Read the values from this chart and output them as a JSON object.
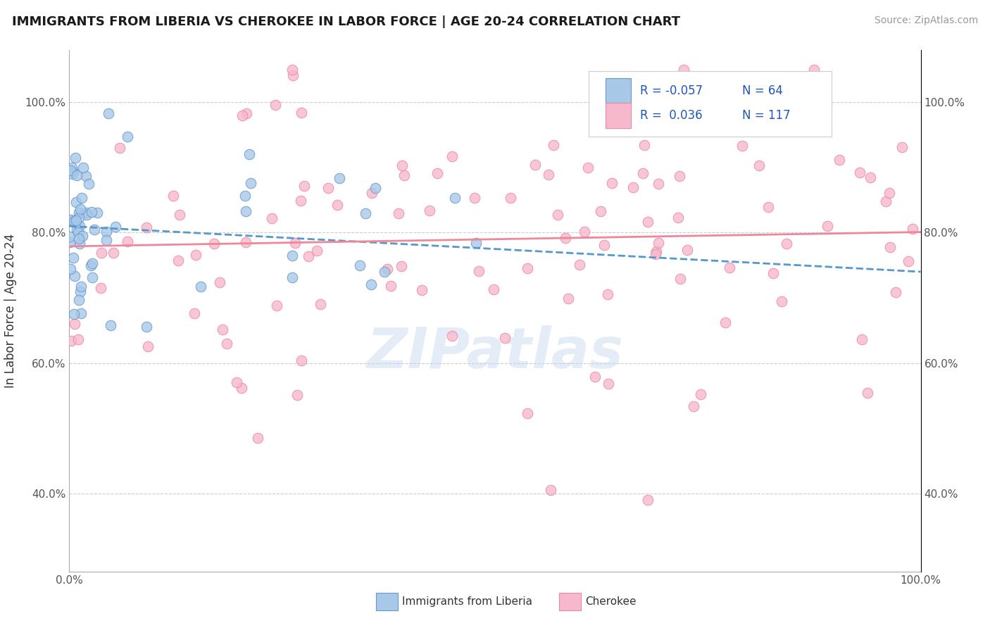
{
  "title": "IMMIGRANTS FROM LIBERIA VS CHEROKEE IN LABOR FORCE | AGE 20-24 CORRELATION CHART",
  "source_text": "Source: ZipAtlas.com",
  "ylabel": "In Labor Force | Age 20-24",
  "r_blue": -0.057,
  "n_blue": 64,
  "r_pink": 0.036,
  "n_pink": 117,
  "blue_scatter_fill": "#a8c8e8",
  "blue_scatter_edge": "#6699cc",
  "pink_scatter_fill": "#f8b8cc",
  "pink_scatter_edge": "#e888a8",
  "blue_line_color": "#5599cc",
  "pink_line_color": "#ee8899",
  "blue_legend_fill": "#a8c8e8",
  "blue_legend_edge": "#6699cc",
  "pink_legend_fill": "#f8b8cc",
  "pink_legend_edge": "#e888a8",
  "watermark_color": "#c5d8ee",
  "watermark_text": "ZIPatlas",
  "xlim": [
    0.0,
    1.0
  ],
  "ylim": [
    0.28,
    1.08
  ],
  "yticks": [
    0.4,
    0.6,
    0.8,
    1.0
  ],
  "ytick_labels": [
    "40.0%",
    "60.0%",
    "80.0%",
    "100.0%"
  ],
  "xtick_labels": [
    "0.0%",
    "100.0%"
  ],
  "blue_trend_y0": 0.81,
  "blue_trend_y1": 0.74,
  "pink_trend_y0": 0.779,
  "pink_trend_y1": 0.801,
  "legend_label_blue": "Immigrants from Liberia",
  "legend_label_pink": "Cherokee"
}
